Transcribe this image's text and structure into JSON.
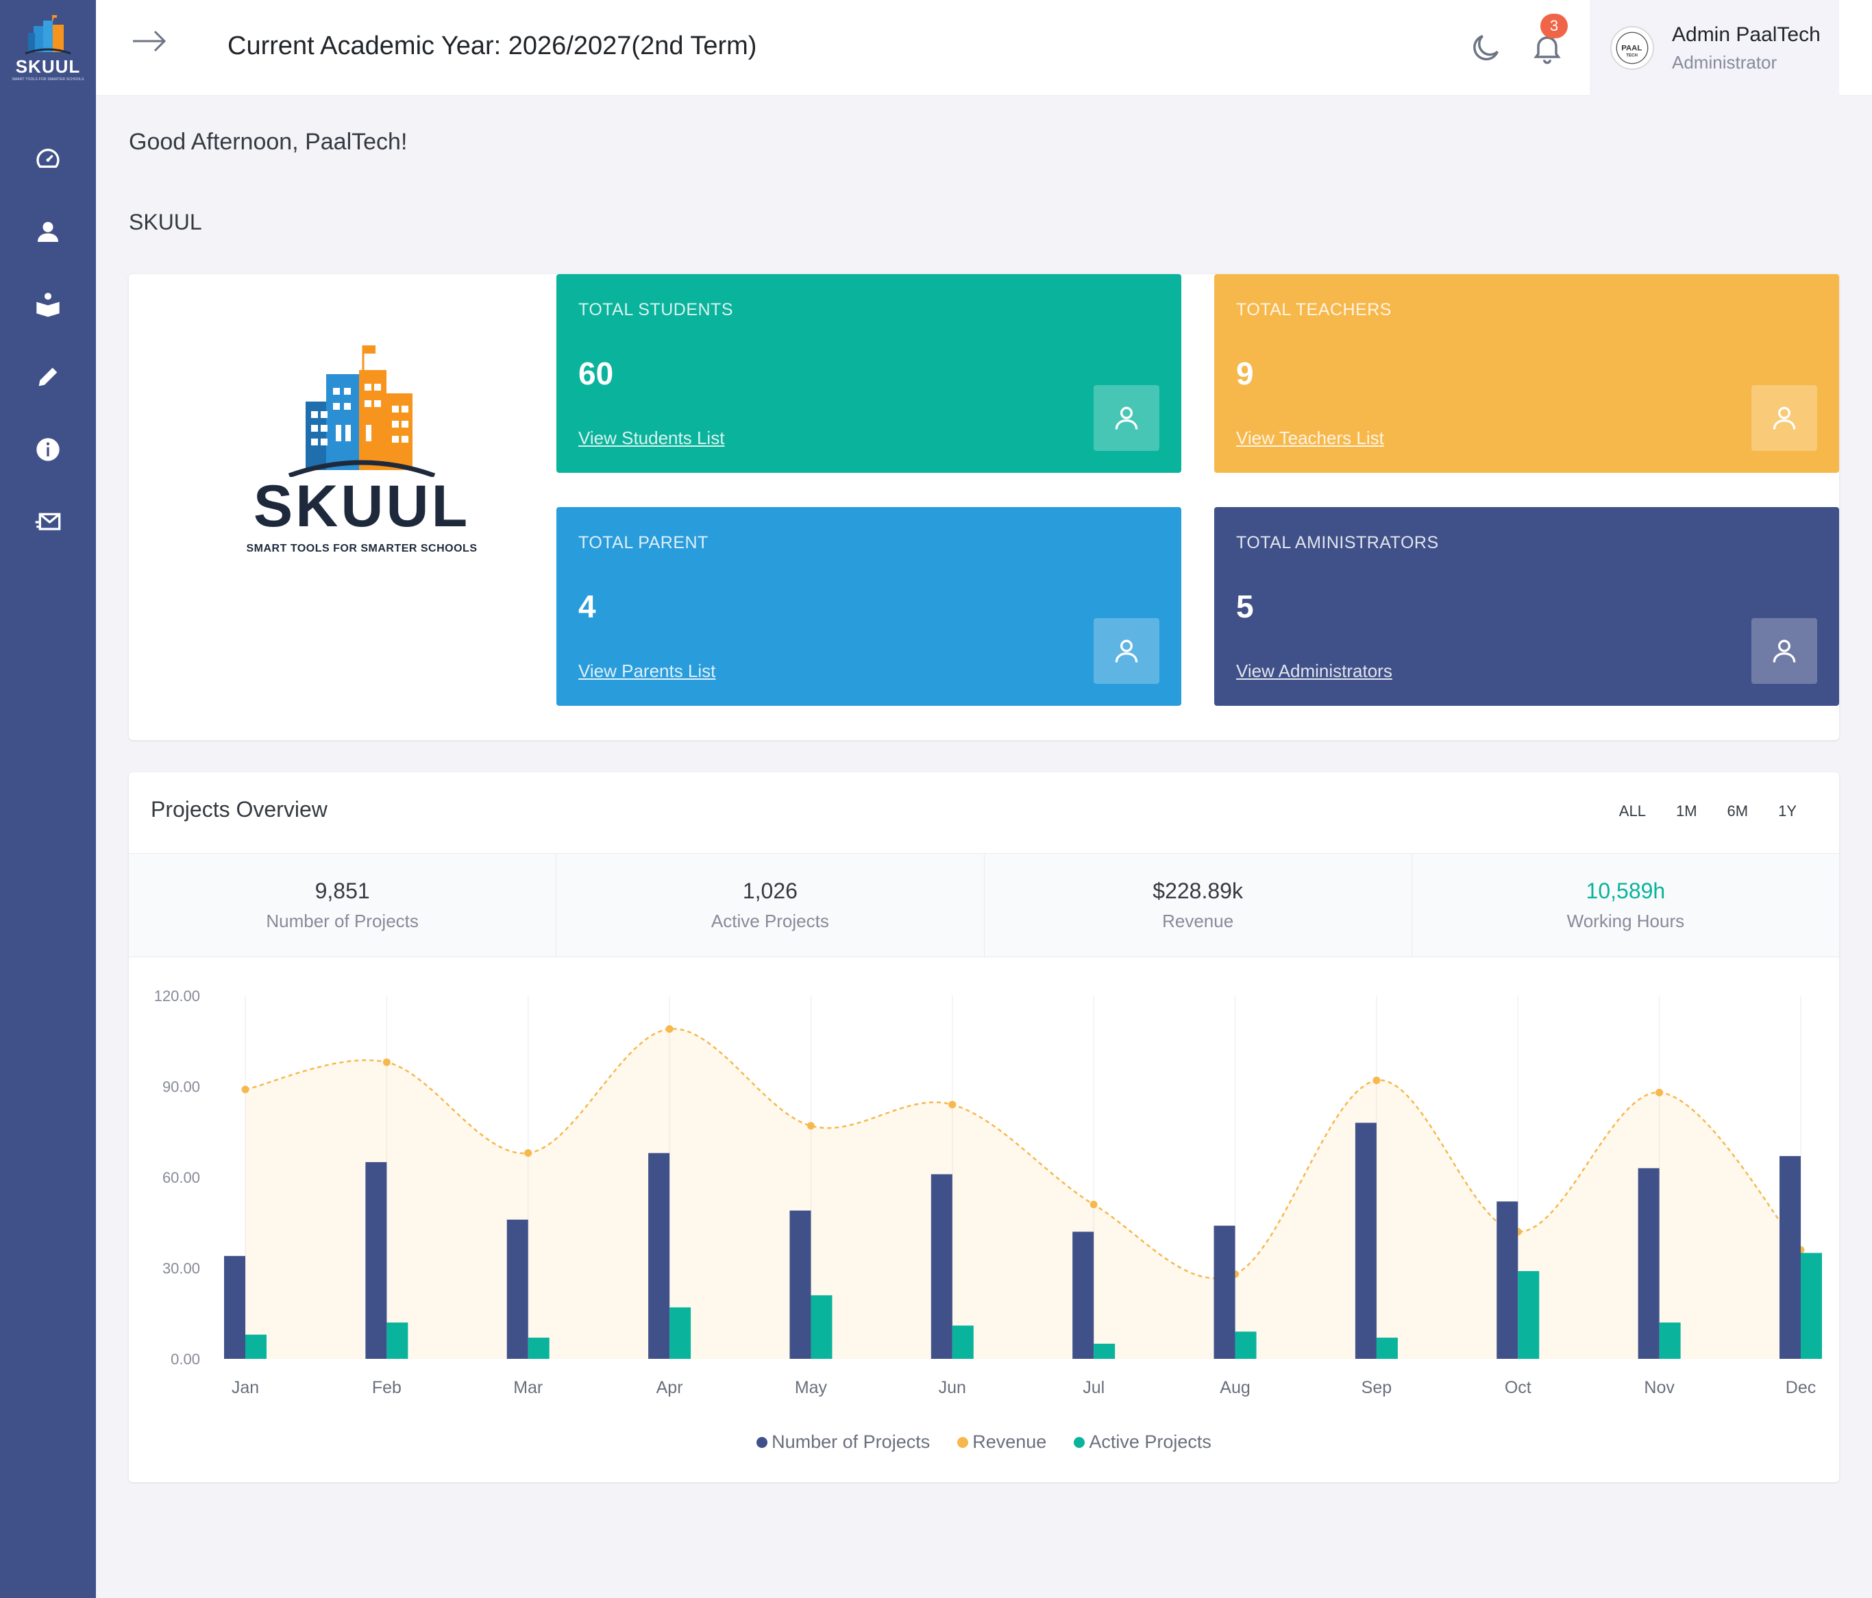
{
  "brand": {
    "name": "SKUUL",
    "tagline": "SMART TOOLS FOR SMARTER SCHOOLS",
    "mini_tagline": "SMART TOOLS FOR SMARTER SCHOOLS"
  },
  "sidebar": {
    "items": [
      {
        "icon": "dashboard-icon"
      },
      {
        "icon": "user-icon"
      },
      {
        "icon": "book-reader-icon"
      },
      {
        "icon": "pencil-icon"
      },
      {
        "icon": "info-icon"
      },
      {
        "icon": "mail-icon"
      }
    ]
  },
  "header": {
    "academic_year": "Current Academic Year: 2026/2027(2nd Term)",
    "notification_count": "3",
    "user_name": "Admin PaalTech",
    "user_role": "Administrator",
    "avatar_text": "PAAL TECH"
  },
  "greeting": "Good Afternoon, PaalTech!",
  "school_name": "SKUUL",
  "stats": [
    {
      "label": "TOTAL STUDENTS",
      "value": "60",
      "link": "View Students List",
      "color": "#0ab39c"
    },
    {
      "label": "TOTAL TEACHERS",
      "value": "9",
      "link": "View Teachers List",
      "color": "#f7b84b"
    },
    {
      "label": "TOTAL PARENT",
      "value": "4",
      "link": "View Parents List",
      "color": "#299cdb"
    },
    {
      "label": "TOTAL AMINISTRATORS",
      "value": "5",
      "link": "View Administrators",
      "color": "#405189"
    }
  ],
  "projects": {
    "title": "Projects Overview",
    "ranges": [
      "ALL",
      "1M",
      "6M",
      "1Y"
    ],
    "summary": [
      {
        "value": "9,851",
        "label": "Number of Projects"
      },
      {
        "value": "1,026",
        "label": "Active Projects"
      },
      {
        "value": "$228.89k",
        "label": "Revenue"
      },
      {
        "value": "10,589h",
        "label": "Working Hours"
      }
    ]
  },
  "chart_data": {
    "type": "bar",
    "categories": [
      "Jan",
      "Feb",
      "Mar",
      "Apr",
      "May",
      "Jun",
      "Jul",
      "Aug",
      "Sep",
      "Oct",
      "Nov",
      "Dec"
    ],
    "ylim": [
      0,
      120
    ],
    "yticks": [
      "0.00",
      "30.00",
      "60.00",
      "90.00",
      "120.00"
    ],
    "ytick_values": [
      0,
      30,
      60,
      90,
      120
    ],
    "series": [
      {
        "name": "Number of Projects",
        "kind": "bar",
        "color": "#405189",
        "values": [
          34,
          65,
          46,
          68,
          49,
          61,
          42,
          44,
          78,
          52,
          63,
          67
        ]
      },
      {
        "name": "Revenue",
        "kind": "area",
        "color": "#f7b84b",
        "values": [
          89,
          98,
          68,
          109,
          77,
          84,
          51,
          28,
          92,
          42,
          88,
          36
        ]
      },
      {
        "name": "Active Projects",
        "kind": "bar",
        "color": "#0ab39c",
        "values": [
          8,
          12,
          7,
          17,
          21,
          11,
          5,
          9,
          7,
          29,
          12,
          35
        ]
      }
    ],
    "legend_position": "bottom",
    "grid": "vertical"
  },
  "colors": {
    "sidebar": "#405189",
    "accent_success": "#0ab39c",
    "badge": "#f06548"
  }
}
